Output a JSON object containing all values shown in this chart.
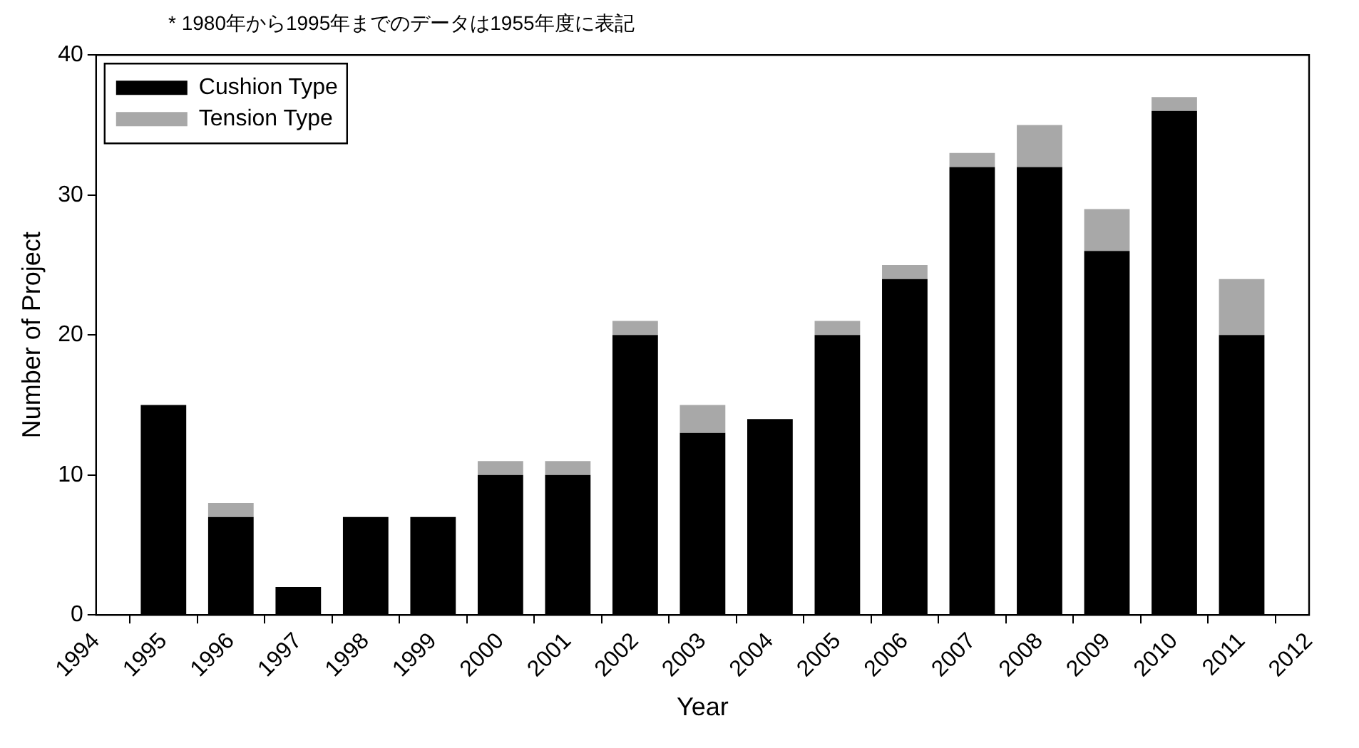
{
  "chart_data": {
    "type": "bar",
    "stacked": true,
    "xlabel": "Year",
    "ylabel": "Number of Project",
    "annotations": [
      "* 1980年から1995年までのデータは1955年度に表記"
    ],
    "x": [
      1995,
      1996,
      1997,
      1998,
      1999,
      2000,
      2001,
      2002,
      2003,
      2004,
      2005,
      2006,
      2007,
      2008,
      2009,
      2010,
      2011
    ],
    "series": [
      {
        "name": "Cushion Type",
        "color": "#000000",
        "values": [
          15,
          7,
          2,
          7,
          7,
          10,
          10,
          20,
          13,
          14,
          20,
          24,
          32,
          32,
          26,
          36,
          20
        ]
      },
      {
        "name": "Tension Type",
        "color": "#a8a8a8",
        "values": [
          0,
          1,
          0,
          0,
          0,
          1,
          1,
          1,
          2,
          0,
          1,
          1,
          1,
          3,
          3,
          1,
          4
        ]
      }
    ],
    "xlim": [
      1994,
      2012
    ],
    "xticks": [
      1994,
      1995,
      1996,
      1997,
      1998,
      1999,
      2000,
      2001,
      2002,
      2003,
      2004,
      2005,
      2006,
      2007,
      2008,
      2009,
      2010,
      2011,
      2012
    ],
    "ylim": [
      0,
      40
    ],
    "yticks": [
      0,
      10,
      20,
      30,
      40
    ],
    "grid": false,
    "legend": "top left"
  }
}
